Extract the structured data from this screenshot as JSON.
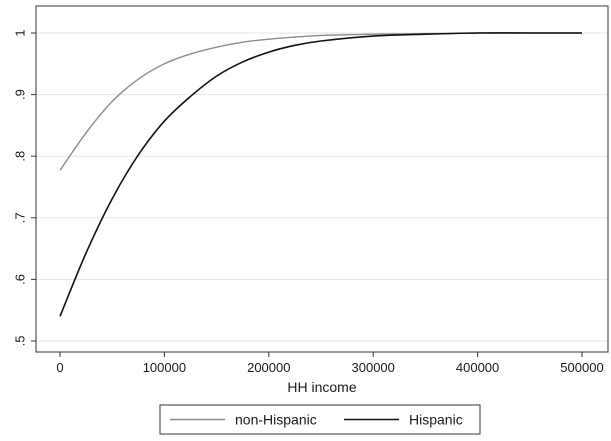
{
  "chart_data": {
    "type": "line",
    "xlabel": "HH income",
    "ylabel": "",
    "xlim": [
      0,
      500000
    ],
    "ylim": [
      0.5,
      1.0
    ],
    "xticks": [
      0,
      100000,
      200000,
      300000,
      400000,
      500000
    ],
    "xtick_labels": [
      "0",
      "100000",
      "200000",
      "300000",
      "400000",
      "500000"
    ],
    "yticks": [
      0.5,
      0.6,
      0.7,
      0.8,
      0.9,
      1.0
    ],
    "ytick_labels": [
      ".5",
      ".6",
      ".7",
      ".8",
      ".9",
      "1"
    ],
    "grid": true,
    "legend_position": "bottom",
    "series": [
      {
        "name": "non-Hispanic",
        "color": "#8c8c8c",
        "x": [
          0,
          25000,
          50000,
          75000,
          100000,
          125000,
          150000,
          175000,
          200000,
          250000,
          300000,
          350000,
          400000,
          450000,
          500000
        ],
        "y": [
          0.777,
          0.838,
          0.889,
          0.925,
          0.95,
          0.966,
          0.977,
          0.985,
          0.99,
          0.996,
          0.998,
          0.999,
          1.0,
          1.0,
          1.0
        ]
      },
      {
        "name": "Hispanic",
        "color": "#111111",
        "x": [
          0,
          25000,
          50000,
          75000,
          100000,
          125000,
          150000,
          175000,
          200000,
          225000,
          250000,
          300000,
          350000,
          400000,
          450000,
          500000
        ],
        "y": [
          0.54,
          0.643,
          0.731,
          0.802,
          0.857,
          0.897,
          0.93,
          0.953,
          0.969,
          0.98,
          0.987,
          0.995,
          0.998,
          1.0,
          1.0,
          1.0
        ]
      }
    ]
  }
}
